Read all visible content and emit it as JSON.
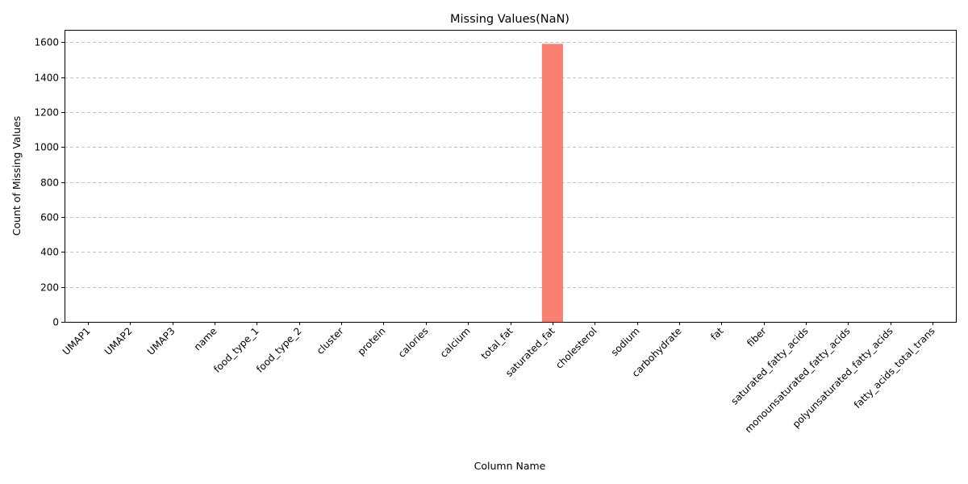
{
  "chart_data": {
    "type": "bar",
    "title": "Missing Values(NaN)",
    "xlabel": "Column Name",
    "ylabel": "Count of Missing Values",
    "categories": [
      "UMAP1",
      "UMAP2",
      "UMAP3",
      "name",
      "food_type_1",
      "food_type_2",
      "cluster",
      "protein",
      "calories",
      "calcium",
      "total_fat",
      "saturated_fat",
      "cholesterol",
      "sodium",
      "carbohydrate",
      "fat",
      "fiber",
      "saturated_fatty_acids",
      "monounsaturated_fatty_acids",
      "polyunsaturated_fatty_acids",
      "fatty_acids_total_trans"
    ],
    "values": [
      0,
      0,
      0,
      0,
      0,
      0,
      0,
      0,
      0,
      0,
      0,
      1590,
      0,
      0,
      0,
      0,
      0,
      0,
      0,
      0,
      0
    ],
    "ylim": [
      0,
      1670
    ],
    "yticks": [
      0,
      200,
      400,
      600,
      800,
      1000,
      1200,
      1400,
      1600
    ],
    "grid": "y-dashed",
    "bar_color": "#fa8072"
  }
}
